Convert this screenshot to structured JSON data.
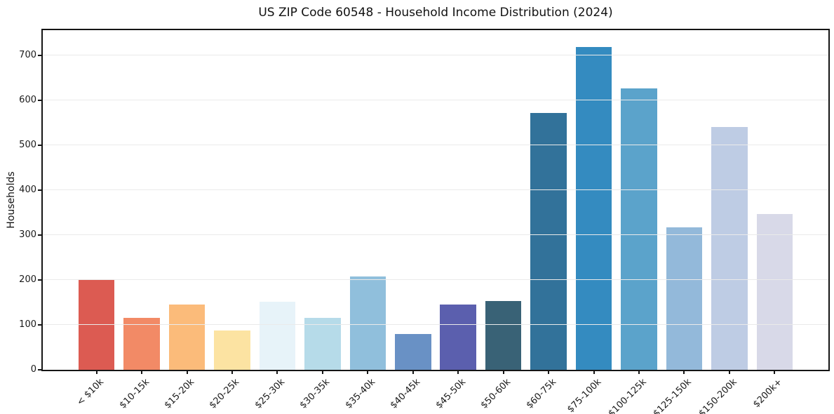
{
  "chart_data": {
    "type": "bar",
    "title": "US ZIP Code 60548 - Household Income Distribution (2024)",
    "xlabel": "",
    "ylabel": "Households",
    "categories": [
      "< $10k",
      "$10-15k",
      "$15-20k",
      "$20-25k",
      "$25-30k",
      "$30-35k",
      "$35-40k",
      "$40-45k",
      "$45-50k",
      "$50-60k",
      "$60-75k",
      "$75-100k",
      "$100-125k",
      "$125-150k",
      "$150-200k",
      "$200k+"
    ],
    "values": [
      201,
      115,
      145,
      87,
      152,
      116,
      208,
      80,
      146,
      153,
      572,
      719,
      626,
      317,
      541,
      347
    ],
    "bar_colors": [
      "#dc5b52",
      "#f28a66",
      "#fbbb7a",
      "#fce3a2",
      "#e7f3f9",
      "#b6dbe9",
      "#90bfdc",
      "#6991c5",
      "#5b5fae",
      "#396276",
      "#32729a",
      "#348bc0",
      "#5ba3cb",
      "#93b9da",
      "#becce4",
      "#d8d9e8"
    ],
    "ylim": [
      0,
      756
    ],
    "yticks": [
      0,
      100,
      200,
      300,
      400,
      500,
      600,
      700
    ],
    "grid": "horizontal-light-over-bars",
    "legend": "none",
    "x_tick_rotation": 45,
    "gridline_color": "#eaeaea",
    "spine_color": "#151515",
    "background_color": "#ffffff"
  }
}
